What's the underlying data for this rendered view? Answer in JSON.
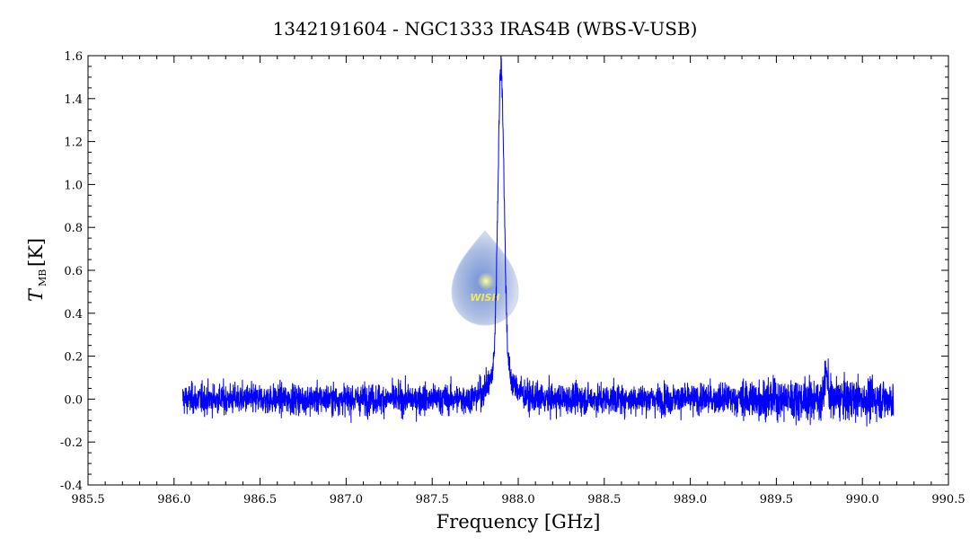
{
  "chart_data": {
    "type": "line",
    "title": "1342191604 - NGC1333 IRAS4B (WBS-V-USB)",
    "xlabel": "Frequency [GHz]",
    "ylabel_main": "T",
    "ylabel_sub": "MB",
    "ylabel_unit": "[K]",
    "xlim": [
      985.5,
      990.5
    ],
    "ylim": [
      -0.4,
      1.6
    ],
    "x_ticks": [
      "985.5",
      "986.0",
      "986.5",
      "987.0",
      "987.5",
      "988.0",
      "988.5",
      "989.0",
      "989.5",
      "990.0",
      "990.5"
    ],
    "y_ticks": [
      "-0.4",
      "-0.2",
      "0.0",
      "0.2",
      "0.4",
      "0.6",
      "0.8",
      "1.0",
      "1.2",
      "1.4",
      "1.6"
    ],
    "series": [
      {
        "color": "#0000ff",
        "x_range": [
          986.05,
          990.18
        ],
        "noise_rms": 0.035,
        "features": [
          {
            "center": 987.9,
            "peak": 1.43,
            "width": 0.018
          },
          {
            "center": 987.9,
            "peak": 0.12,
            "width": 0.07
          },
          {
            "center": 989.79,
            "peak": 0.12,
            "width": 0.01
          }
        ]
      }
    ],
    "grid": false,
    "logo": {
      "text": "WISH",
      "icon": "water-drop-star-icon"
    }
  }
}
